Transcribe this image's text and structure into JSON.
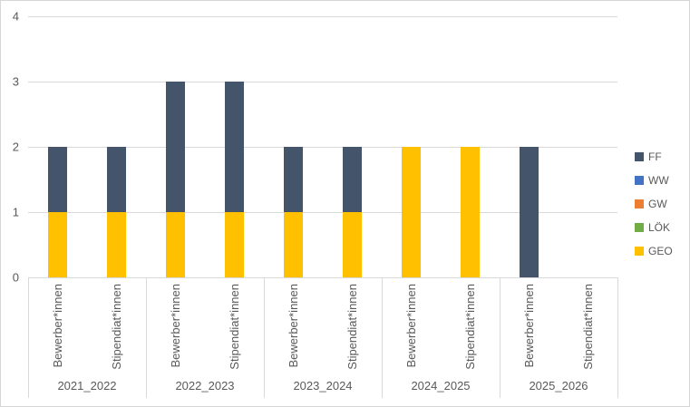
{
  "chart": {
    "background": "#FFFFFF",
    "border_color": "#D6D6D6",
    "gridline_color": "#D9D9D9",
    "axis_line_color": "#D9D9D9",
    "text_color": "#595959"
  },
  "chart_data": {
    "type": "bar",
    "stacked": true,
    "title": "",
    "xlabel": "",
    "ylabel": "",
    "groups": [
      "2021_2022",
      "2022_2023",
      "2023_2024",
      "2024_2025",
      "2025_2026"
    ],
    "bars_per_group": [
      "Bewerber*innen",
      "Stipendiat*innen"
    ],
    "bar_order_note": "values arrays list 10 bars: group-major, Bewerber*innen then Stipendiat*innen",
    "series": [
      {
        "name": "FF",
        "color": "#44546A",
        "values": [
          1,
          1,
          2,
          2,
          1,
          1,
          0,
          0,
          2,
          0
        ]
      },
      {
        "name": "WW",
        "color": "#4472C4",
        "values": [
          0,
          0,
          0,
          0,
          0,
          0,
          0,
          0,
          0,
          0
        ]
      },
      {
        "name": "GW",
        "color": "#ED7D31",
        "values": [
          0,
          0,
          0,
          0,
          0,
          0,
          0,
          0,
          0,
          0
        ]
      },
      {
        "name": "LÖK",
        "color": "#70AD47",
        "values": [
          0,
          0,
          0,
          0,
          0,
          0,
          0,
          0,
          0,
          0
        ]
      },
      {
        "name": "GEO",
        "color": "#FFC000",
        "values": [
          1,
          1,
          1,
          1,
          1,
          1,
          2,
          2,
          0,
          0
        ]
      }
    ],
    "bar_totals": [
      2,
      2,
      3,
      3,
      2,
      2,
      2,
      2,
      2,
      0
    ],
    "y_axis": {
      "min": 0,
      "max": 4,
      "tick_step": 1,
      "ticks": [
        "0",
        "1",
        "2",
        "3",
        "4"
      ]
    },
    "legend_position": "right",
    "legend_entries": [
      "FF",
      "WW",
      "GW",
      "LÖK",
      "GEO"
    ],
    "grid": true
  }
}
